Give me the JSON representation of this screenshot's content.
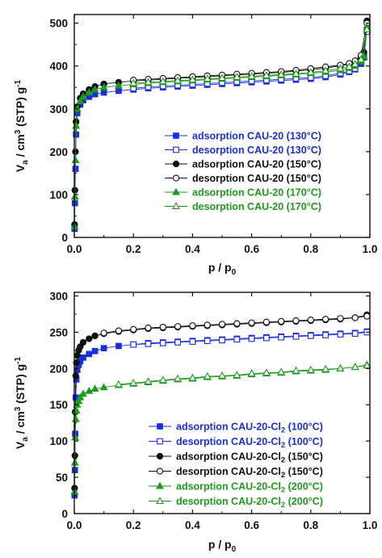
{
  "chart_data": [
    {
      "type": "scatter",
      "xlim": [
        0.0,
        1.0
      ],
      "ylim": [
        0,
        520
      ],
      "xticks": [
        "0.0",
        "0.2",
        "0.4",
        "0.6",
        "0.8",
        "1.0"
      ],
      "yticks": [
        "0",
        "100",
        "200",
        "300",
        "400",
        "500"
      ],
      "xlabel": {
        "main": "p / p",
        "sub": "0"
      },
      "ylabel": {
        "pre": "V",
        "sub1": "a",
        "mid": " / cm",
        "sup": "3",
        "post": " (STP) g",
        "sup2": "-1"
      },
      "legend_position": "lower-right",
      "series": [
        {
          "name": "adsorption CAU-20 (130°C)",
          "color": "#1a2ee0",
          "marker": "square",
          "filled": true,
          "x": [
            0.001,
            0.002,
            0.004,
            0.006,
            0.01,
            0.02,
            0.03,
            0.05,
            0.07,
            0.1,
            0.15,
            0.2,
            0.25,
            0.3,
            0.35,
            0.4,
            0.45,
            0.5,
            0.55,
            0.6,
            0.65,
            0.7,
            0.75,
            0.8,
            0.85,
            0.9,
            0.93,
            0.95,
            0.97,
            0.98,
            0.99
          ],
          "y": [
            20,
            80,
            160,
            240,
            290,
            310,
            320,
            328,
            334,
            338,
            342,
            345,
            348,
            350,
            352,
            354,
            356,
            358,
            360,
            362,
            364,
            366,
            368,
            370,
            374,
            380,
            386,
            392,
            405,
            420,
            485
          ]
        },
        {
          "name": "desorption CAU-20 (130°C)",
          "color": "#1a2ee0",
          "marker": "square",
          "filled": false,
          "x": [
            0.99,
            0.97,
            0.95,
            0.93,
            0.9,
            0.85,
            0.8,
            0.75,
            0.7,
            0.65,
            0.6,
            0.55,
            0.5,
            0.45,
            0.4,
            0.35,
            0.3,
            0.25,
            0.2
          ],
          "y": [
            480,
            410,
            394,
            388,
            383,
            377,
            373,
            371,
            369,
            367,
            365,
            363,
            361,
            359,
            357,
            355,
            353,
            351,
            348
          ]
        },
        {
          "name": "adsorption CAU-20 (150°C)",
          "color": "#111111",
          "marker": "circle",
          "filled": true,
          "x": [
            0.001,
            0.002,
            0.004,
            0.006,
            0.01,
            0.02,
            0.03,
            0.05,
            0.07,
            0.1,
            0.15,
            0.2,
            0.25,
            0.3,
            0.35,
            0.4,
            0.45,
            0.5,
            0.55,
            0.6,
            0.65,
            0.7,
            0.75,
            0.8,
            0.85,
            0.9,
            0.93,
            0.95,
            0.97,
            0.98,
            0.99
          ],
          "y": [
            30,
            110,
            200,
            270,
            305,
            325,
            335,
            345,
            352,
            358,
            362,
            365,
            367,
            369,
            371,
            373,
            375,
            377,
            379,
            381,
            383,
            385,
            388,
            391,
            395,
            400,
            405,
            410,
            420,
            432,
            505
          ]
        },
        {
          "name": "desorption CAU-20 (150°C)",
          "color": "#111111",
          "marker": "circle",
          "filled": false,
          "x": [
            0.99,
            0.97,
            0.95,
            0.93,
            0.9,
            0.85,
            0.8,
            0.75,
            0.7,
            0.65,
            0.6,
            0.55,
            0.5,
            0.45,
            0.4,
            0.35,
            0.3,
            0.25,
            0.2
          ],
          "y": [
            500,
            425,
            412,
            406,
            402,
            398,
            394,
            390,
            387,
            385,
            383,
            381,
            379,
            377,
            375,
            373,
            371,
            369,
            367
          ]
        },
        {
          "name": "adsorption CAU-20 (170°C)",
          "color": "#1e9a1e",
          "marker": "triangle",
          "filled": true,
          "x": [
            0.001,
            0.002,
            0.004,
            0.006,
            0.01,
            0.02,
            0.03,
            0.05,
            0.07,
            0.1,
            0.15,
            0.2,
            0.25,
            0.3,
            0.35,
            0.4,
            0.45,
            0.5,
            0.55,
            0.6,
            0.65,
            0.7,
            0.75,
            0.8,
            0.85,
            0.9,
            0.93,
            0.95,
            0.97,
            0.98,
            0.99
          ],
          "y": [
            25,
            95,
            180,
            260,
            300,
            318,
            328,
            338,
            345,
            350,
            354,
            357,
            360,
            362,
            364,
            366,
            368,
            370,
            372,
            374,
            376,
            378,
            380,
            383,
            386,
            390,
            395,
            400,
            410,
            422,
            490
          ]
        },
        {
          "name": "desorption CAU-20 (170°C)",
          "color": "#1e9a1e",
          "marker": "triangle",
          "filled": false,
          "x": [
            0.99,
            0.97,
            0.95,
            0.93,
            0.9,
            0.85,
            0.8,
            0.75,
            0.7,
            0.65,
            0.6,
            0.55,
            0.5,
            0.45,
            0.4,
            0.35,
            0.3,
            0.25,
            0.2
          ],
          "y": [
            485,
            415,
            404,
            398,
            394,
            389,
            385,
            382,
            380,
            378,
            376,
            374,
            372,
            370,
            368,
            366,
            364,
            362,
            360
          ]
        }
      ]
    },
    {
      "type": "scatter",
      "xlim": [
        0.0,
        1.0
      ],
      "ylim": [
        0,
        305
      ],
      "xticks": [
        "0.0",
        "0.2",
        "0.4",
        "0.6",
        "0.8",
        "1.0"
      ],
      "yticks": [
        "0",
        "50",
        "100",
        "150",
        "200",
        "250",
        "300"
      ],
      "xlabel": {
        "main": "p / p",
        "sub": "0"
      },
      "ylabel": {
        "pre": "V",
        "sub1": "a",
        "mid": " / cm",
        "sup": "3",
        "post": " (STP) g",
        "sup2": "-1"
      },
      "legend_position": "lower-right",
      "series": [
        {
          "name": "adsorption CAU-20-Cl",
          "name_sub": "2",
          "name_suffix": " (100°C)",
          "color": "#1a2ee0",
          "marker": "square",
          "filled": true,
          "x": [
            0.001,
            0.002,
            0.003,
            0.005,
            0.007,
            0.01,
            0.015,
            0.02,
            0.03,
            0.05,
            0.07,
            0.1,
            0.15,
            0.2,
            0.25,
            0.3,
            0.35,
            0.4,
            0.45,
            0.5,
            0.55,
            0.6,
            0.65,
            0.7,
            0.75,
            0.8,
            0.85,
            0.9,
            0.95,
            0.99
          ],
          "y": [
            25,
            60,
            110,
            160,
            185,
            198,
            205,
            210,
            215,
            220,
            224,
            228,
            231,
            233,
            235,
            236,
            237,
            238,
            239,
            240,
            241,
            242,
            243,
            244,
            245,
            246,
            247,
            248,
            249,
            251
          ]
        },
        {
          "name": "desorption CAU-20-Cl",
          "name_sub": "2",
          "name_suffix": " (100°C)",
          "color": "#1a2ee0",
          "marker": "square",
          "filled": false,
          "x": [
            0.99,
            0.95,
            0.9,
            0.85,
            0.8,
            0.75,
            0.7,
            0.65,
            0.6,
            0.55,
            0.5,
            0.45,
            0.4,
            0.35,
            0.3,
            0.25,
            0.2
          ],
          "y": [
            250,
            248,
            247,
            246,
            245,
            244,
            243,
            242,
            241,
            240,
            239,
            238,
            237,
            236,
            235,
            234,
            233
          ]
        },
        {
          "name": "adsorption CAU-20-Cl",
          "name_sub": "2",
          "name_suffix": " (150°C)",
          "color": "#111111",
          "marker": "circle",
          "filled": true,
          "x": [
            0.001,
            0.002,
            0.003,
            0.005,
            0.007,
            0.01,
            0.015,
            0.02,
            0.03,
            0.05,
            0.07,
            0.1,
            0.15,
            0.2,
            0.25,
            0.3,
            0.35,
            0.4,
            0.45,
            0.5,
            0.55,
            0.6,
            0.65,
            0.7,
            0.75,
            0.8,
            0.85,
            0.9,
            0.95,
            0.99
          ],
          "y": [
            35,
            80,
            140,
            190,
            208,
            218,
            225,
            230,
            236,
            241,
            245,
            248,
            251,
            253,
            255,
            256,
            257,
            258,
            259,
            260,
            261,
            262,
            263,
            264,
            265,
            266,
            267,
            268,
            270,
            274
          ]
        },
        {
          "name": "desorption CAU-20-Cl",
          "name_sub": "2",
          "name_suffix": " (150°C)",
          "color": "#111111",
          "marker": "circle",
          "filled": false,
          "x": [
            0.99,
            0.95,
            0.9,
            0.85,
            0.8,
            0.75,
            0.7,
            0.65,
            0.6,
            0.55,
            0.5,
            0.45,
            0.4,
            0.35,
            0.3,
            0.25,
            0.2,
            0.15,
            0.1
          ],
          "y": [
            272,
            270,
            269,
            268,
            267,
            266,
            265,
            264,
            263,
            262,
            261,
            260,
            259,
            258,
            257,
            256,
            254,
            252,
            249
          ]
        },
        {
          "name": "adsorption CAU-20-Cl",
          "name_sub": "2",
          "name_suffix": " (200°C)",
          "color": "#1e9a1e",
          "marker": "triangle",
          "filled": true,
          "x": [
            0.001,
            0.002,
            0.003,
            0.005,
            0.007,
            0.01,
            0.015,
            0.02,
            0.03,
            0.05,
            0.07,
            0.1,
            0.15,
            0.2,
            0.25,
            0.3,
            0.35,
            0.4,
            0.45,
            0.5,
            0.55,
            0.6,
            0.65,
            0.7,
            0.75,
            0.8,
            0.85,
            0.9,
            0.95,
            0.99
          ],
          "y": [
            30,
            70,
            105,
            130,
            142,
            150,
            155,
            160,
            165,
            169,
            172,
            174,
            177,
            179,
            181,
            183,
            185,
            186,
            188,
            189,
            190,
            192,
            193,
            194,
            196,
            197,
            198,
            200,
            202,
            205
          ]
        },
        {
          "name": "desorption CAU-20-Cl",
          "name_sub": "2",
          "name_suffix": " (200°C)",
          "color": "#1e9a1e",
          "marker": "triangle",
          "filled": false,
          "x": [
            0.99,
            0.95,
            0.9,
            0.85,
            0.8,
            0.75,
            0.7,
            0.65,
            0.6,
            0.55,
            0.5,
            0.45,
            0.4,
            0.35,
            0.3,
            0.25,
            0.2,
            0.15
          ],
          "y": [
            204,
            202,
            200,
            199,
            198,
            197,
            195,
            194,
            193,
            191,
            190,
            189,
            187,
            186,
            184,
            182,
            180,
            178
          ]
        }
      ]
    }
  ]
}
